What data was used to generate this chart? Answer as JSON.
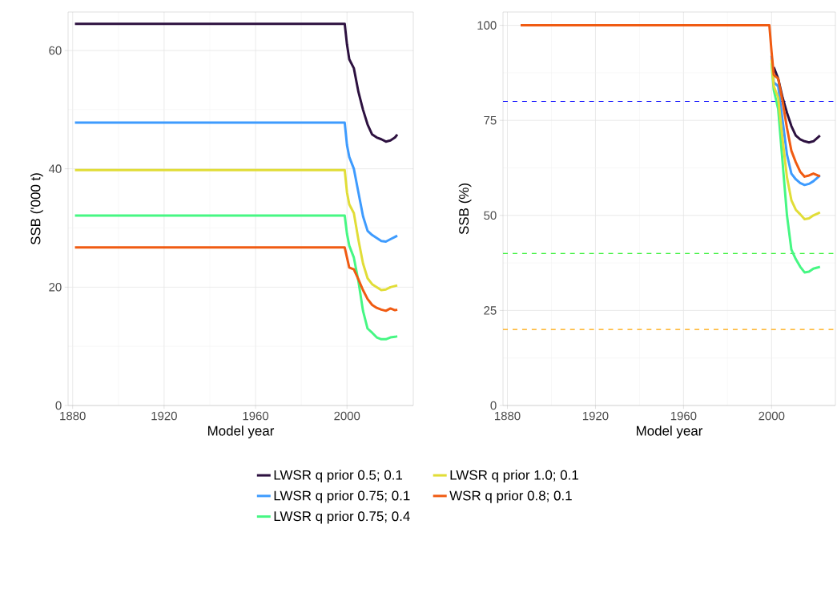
{
  "chart_data": [
    {
      "type": "line",
      "xlabel": "Model year",
      "ylabel": "SSB ('000 t)",
      "xlim": [
        1878,
        2029
      ],
      "ylim": [
        0,
        66.5
      ],
      "xticks": [
        1880,
        1920,
        1960,
        2000
      ],
      "yticks": [
        0,
        20,
        40,
        60
      ],
      "grid": true,
      "legend": "bottom",
      "x": [
        1881,
        1999,
        2000,
        2001,
        2003,
        2005,
        2007,
        2009,
        2011,
        2013,
        2015,
        2017,
        2019,
        2021,
        2022
      ],
      "series": [
        {
          "name": "LWSR q prior 0.5; 0.1",
          "color": "#2d1140",
          "values": [
            64.5,
            64.5,
            61,
            58.5,
            57,
            53,
            50,
            47.5,
            45.8,
            45.3,
            45,
            44.6,
            44.8,
            45.3,
            45.8
          ]
        },
        {
          "name": "LWSR q prior 0.75; 0.1",
          "color": "#3e9bfe",
          "values": [
            47.8,
            47.8,
            44,
            42,
            40,
            36,
            32,
            29.5,
            28.8,
            28.3,
            27.8,
            27.7,
            28.1,
            28.5,
            28.7
          ]
        },
        {
          "name": "LWSR q prior 0.75; 0.4",
          "color": "#46f783",
          "values": [
            32.1,
            32.1,
            29,
            27,
            25,
            21,
            16,
            13,
            12.3,
            11.5,
            11.2,
            11.2,
            11.5,
            11.6,
            11.7
          ]
        },
        {
          "name": "LWSR q prior 1.0; 0.1",
          "color": "#e1dd37",
          "values": [
            39.8,
            39.8,
            36,
            34,
            32.5,
            28,
            24,
            21.5,
            20.5,
            20,
            19.5,
            19.6,
            20,
            20.2,
            20.3
          ]
        },
        {
          "name": "WSR q prior 0.8; 0.1",
          "color": "#f05b12",
          "values": [
            26.7,
            26.7,
            25,
            23.3,
            23,
            21.3,
            19.5,
            18,
            17,
            16.5,
            16.2,
            16,
            16.4,
            16.1,
            16.2
          ]
        }
      ]
    },
    {
      "type": "line",
      "xlabel": "Model year",
      "ylabel": "SSB (%)",
      "xlim": [
        1878,
        2029
      ],
      "ylim": [
        0,
        103.5
      ],
      "xticks": [
        1880,
        1920,
        1960,
        2000
      ],
      "yticks": [
        0,
        25,
        50,
        75,
        100
      ],
      "grid": true,
      "x": [
        1886,
        1999,
        2000,
        2001,
        2003,
        2005,
        2007,
        2009,
        2011,
        2013,
        2015,
        2017,
        2019,
        2021,
        2022
      ],
      "ref_lines": [
        {
          "axis": "y",
          "value": 80,
          "color": "#0000ff",
          "line_style": "dashed"
        },
        {
          "axis": "y",
          "value": 40,
          "color": "#00ee00",
          "line_style": "dashed"
        },
        {
          "axis": "y",
          "value": 20,
          "color": "#ffa500",
          "line_style": "dashed"
        }
      ],
      "series": [
        {
          "color": "#2d1140",
          "values": [
            null,
            null,
            null,
            89,
            86,
            81,
            77,
            73.5,
            71,
            70,
            69.5,
            69.2,
            69.5,
            70.5,
            71
          ]
        },
        {
          "color": "#3e9bfe",
          "values": [
            null,
            null,
            92,
            85,
            84,
            75,
            66,
            61,
            59.5,
            58.5,
            58,
            58.3,
            59,
            60,
            60.5
          ]
        },
        {
          "color": "#46f783",
          "values": [
            null,
            null,
            90,
            83,
            78,
            64,
            50,
            41,
            38.5,
            36.5,
            35,
            35.2,
            36,
            36.3,
            36.5
          ]
        },
        {
          "color": "#e1dd37",
          "values": [
            null,
            null,
            91,
            84,
            81,
            70,
            60,
            54,
            51.5,
            50.3,
            49,
            49.2,
            50,
            50.5,
            50.8
          ]
        },
        {
          "color": "#f05b12",
          "values": [
            100,
            100,
            93,
            87,
            86,
            80,
            73,
            67,
            64,
            61.5,
            60.2,
            60.5,
            61,
            60.5,
            60.3
          ]
        }
      ]
    }
  ]
}
